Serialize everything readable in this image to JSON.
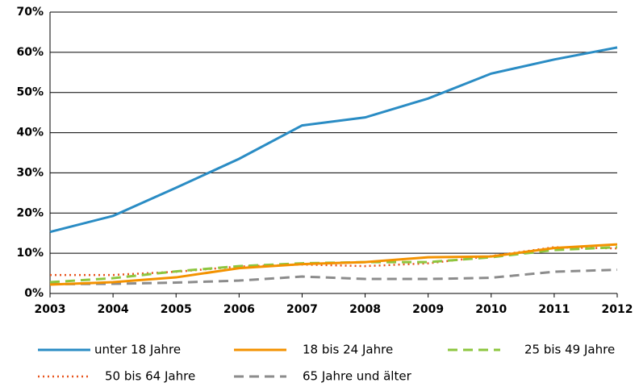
{
  "chart_data": {
    "type": "line",
    "x": [
      2003,
      2004,
      2005,
      2006,
      2007,
      2008,
      2009,
      2010,
      2011,
      2012
    ],
    "xlim": [
      2003,
      2012
    ],
    "xticks": [
      2003,
      2004,
      2005,
      2006,
      2007,
      2008,
      2009,
      2010,
      2011,
      2012
    ],
    "ylim": [
      0,
      70
    ],
    "yticks": [
      {
        "value": 0,
        "label": "0%"
      },
      {
        "value": 10,
        "label": "10%"
      },
      {
        "value": 20,
        "label": "20%"
      },
      {
        "value": 30,
        "label": "30%"
      },
      {
        "value": 40,
        "label": "40%"
      },
      {
        "value": 50,
        "label": "50%"
      },
      {
        "value": 60,
        "label": "60%"
      },
      {
        "value": 70,
        "label": "70%"
      }
    ],
    "grid": true,
    "legend": "bottom",
    "series": [
      {
        "name": "unter 18 Jahre",
        "color": "#2a8cc4",
        "dash": "solid",
        "values": [
          15.3,
          19.3,
          26.3,
          33.5,
          41.8,
          43.8,
          48.5,
          54.7,
          58.2,
          61.2
        ]
      },
      {
        "name": "18 bis 24 Jahre",
        "color": "#f39200",
        "dash": "solid",
        "values": [
          2.2,
          2.8,
          4.0,
          6.3,
          7.3,
          7.8,
          9.0,
          9.2,
          11.3,
          12.2
        ]
      },
      {
        "name": "25 bis 49 Jahre",
        "color": "#8dc63f",
        "dash": "dashed",
        "values": [
          2.8,
          3.8,
          5.5,
          6.8,
          7.5,
          7.8,
          7.8,
          9.0,
          10.8,
          11.5
        ]
      },
      {
        "name": "50 bis 64 Jahre",
        "color": "#e8541d",
        "dash": "dotted",
        "values": [
          4.6,
          4.6,
          5.4,
          6.7,
          7.2,
          6.8,
          7.5,
          9.3,
          11.5,
          11.2
        ]
      },
      {
        "name": "65 Jahre und älter",
        "color": "#8c8c8c",
        "dash": "dashed",
        "values": [
          2.3,
          2.4,
          2.7,
          3.2,
          4.2,
          3.6,
          3.6,
          3.9,
          5.4,
          5.9
        ]
      }
    ]
  }
}
